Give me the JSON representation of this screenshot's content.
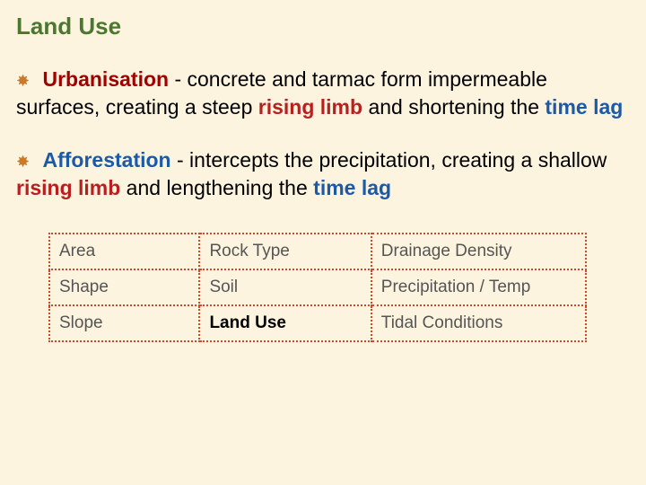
{
  "title": "Land Use",
  "points": [
    {
      "term": "Urbanisation",
      "term_color": "#a00000",
      "text1": " - concrete and tarmac form impermeable surfaces, creating a steep ",
      "kw1": "rising limb",
      "text2": " and shortening the ",
      "kw2": "time lag"
    },
    {
      "term": "Afforestation",
      "term_color": "#1b5aa8",
      "text1": " - intercepts the precipitation, creating a shallow ",
      "kw1": "rising limb",
      "text2": " and lengthening the ",
      "kw2": "time lag"
    }
  ],
  "nav": {
    "rows": [
      [
        "Area",
        "Rock Type",
        "Drainage Density"
      ],
      [
        "Shape",
        "Soil",
        "Precipitation / Temp"
      ],
      [
        "Slope",
        "Land Use",
        "Tidal Conditions"
      ]
    ],
    "active": "Land Use",
    "col_widths": [
      "28%",
      "32%",
      "40%"
    ],
    "border_color": "#c94a2e",
    "text_color": "#555",
    "active_text_color": "#000",
    "font_size": 19
  },
  "colors": {
    "background": "#fdf4e0",
    "title": "#4b772f",
    "bullet": "#c97b2b",
    "rising_limb": "#b82020",
    "time_lag": "#1b5aa8"
  },
  "fonts": {
    "body_family": "Comic Sans MS",
    "title_size": 26,
    "body_size": 23,
    "nav_family": "Arial",
    "nav_size": 19
  }
}
